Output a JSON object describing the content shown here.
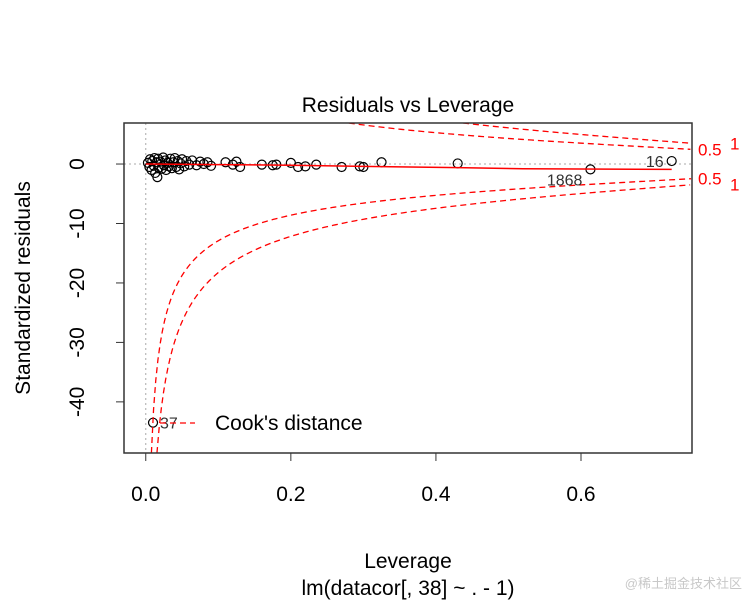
{
  "chart_data": {
    "type": "scatter",
    "title": "Residuals vs Leverage",
    "xlabel": "Leverage",
    "subtitle": "lm(datacor[, 38] ~ . - 1)",
    "ylabel": "Standardized residuals",
    "xlim": [
      -0.03,
      0.753
    ],
    "ylim": [
      -48.6,
      6.9
    ],
    "xticks": [
      0.0,
      0.2,
      0.4,
      0.6
    ],
    "xtick_labels": [
      "0.0",
      "0.2",
      "0.4",
      "0.6"
    ],
    "yticks": [
      0,
      -10,
      -20,
      -30,
      -40
    ],
    "ytick_labels": [
      "0",
      "-10",
      "-20",
      "-30",
      "-40"
    ],
    "n_params": 37,
    "cook_levels": [
      0.5,
      1
    ],
    "cook_labels": [
      "0.5",
      "1"
    ],
    "legend": {
      "label": "Cook's distance",
      "placement": "bottom-left"
    },
    "points": [
      [
        0.003,
        0.2
      ],
      [
        0.005,
        -0.5
      ],
      [
        0.006,
        0.8
      ],
      [
        0.008,
        -1.0
      ],
      [
        0.009,
        0.5
      ],
      [
        0.01,
        -43.5
      ],
      [
        0.011,
        -0.3
      ],
      [
        0.012,
        1.0
      ],
      [
        0.013,
        -1.5
      ],
      [
        0.015,
        0.3
      ],
      [
        0.016,
        -2.2
      ],
      [
        0.017,
        0.9
      ],
      [
        0.018,
        -0.6
      ],
      [
        0.02,
        0.4
      ],
      [
        0.022,
        -0.8
      ],
      [
        0.024,
        1.1
      ],
      [
        0.025,
        -0.2
      ],
      [
        0.027,
        0.6
      ],
      [
        0.028,
        -1.0
      ],
      [
        0.03,
        0.2
      ],
      [
        0.032,
        -0.4
      ],
      [
        0.034,
        0.9
      ],
      [
        0.036,
        -0.7
      ],
      [
        0.038,
        0.3
      ],
      [
        0.04,
        1.0
      ],
      [
        0.042,
        -0.5
      ],
      [
        0.044,
        0.5
      ],
      [
        0.046,
        -0.9
      ],
      [
        0.048,
        0.1
      ],
      [
        0.05,
        0.8
      ],
      [
        0.053,
        -0.4
      ],
      [
        0.056,
        0.5
      ],
      [
        0.06,
        -0.1
      ],
      [
        0.064,
        0.6
      ],
      [
        0.07,
        -0.2
      ],
      [
        0.075,
        0.4
      ],
      [
        0.08,
        0.0
      ],
      [
        0.085,
        0.3
      ],
      [
        0.09,
        -0.3
      ],
      [
        0.11,
        0.3
      ],
      [
        0.12,
        -0.1
      ],
      [
        0.125,
        0.4
      ],
      [
        0.13,
        -0.5
      ],
      [
        0.16,
        -0.1
      ],
      [
        0.175,
        -0.2
      ],
      [
        0.18,
        -0.1
      ],
      [
        0.2,
        0.2
      ],
      [
        0.21,
        -0.5
      ],
      [
        0.22,
        -0.4
      ],
      [
        0.235,
        -0.1
      ],
      [
        0.27,
        -0.5
      ],
      [
        0.295,
        -0.4
      ],
      [
        0.3,
        -0.5
      ],
      [
        0.325,
        0.3
      ],
      [
        0.43,
        0.1
      ],
      [
        0.613,
        -0.9
      ],
      [
        0.725,
        0.5
      ]
    ],
    "labeled_points": [
      {
        "label": "37",
        "x": 0.01,
        "y": -43.5
      },
      {
        "label": "1868",
        "x": 0.613,
        "y": -0.9
      },
      {
        "label": "16",
        "x": 0.725,
        "y": 0.5
      }
    ],
    "smooth": [
      [
        0.0,
        0.0
      ],
      [
        0.1,
        -0.1
      ],
      [
        0.2,
        -0.2
      ],
      [
        0.3,
        -0.4
      ],
      [
        0.43,
        -0.6
      ],
      [
        0.52,
        -0.8
      ],
      [
        0.725,
        -0.9
      ]
    ]
  },
  "watermark": "@稀土掘金技术社区",
  "colors": {
    "points": "#000000",
    "smooth": "#ff0000",
    "cook": "#ff0000"
  }
}
